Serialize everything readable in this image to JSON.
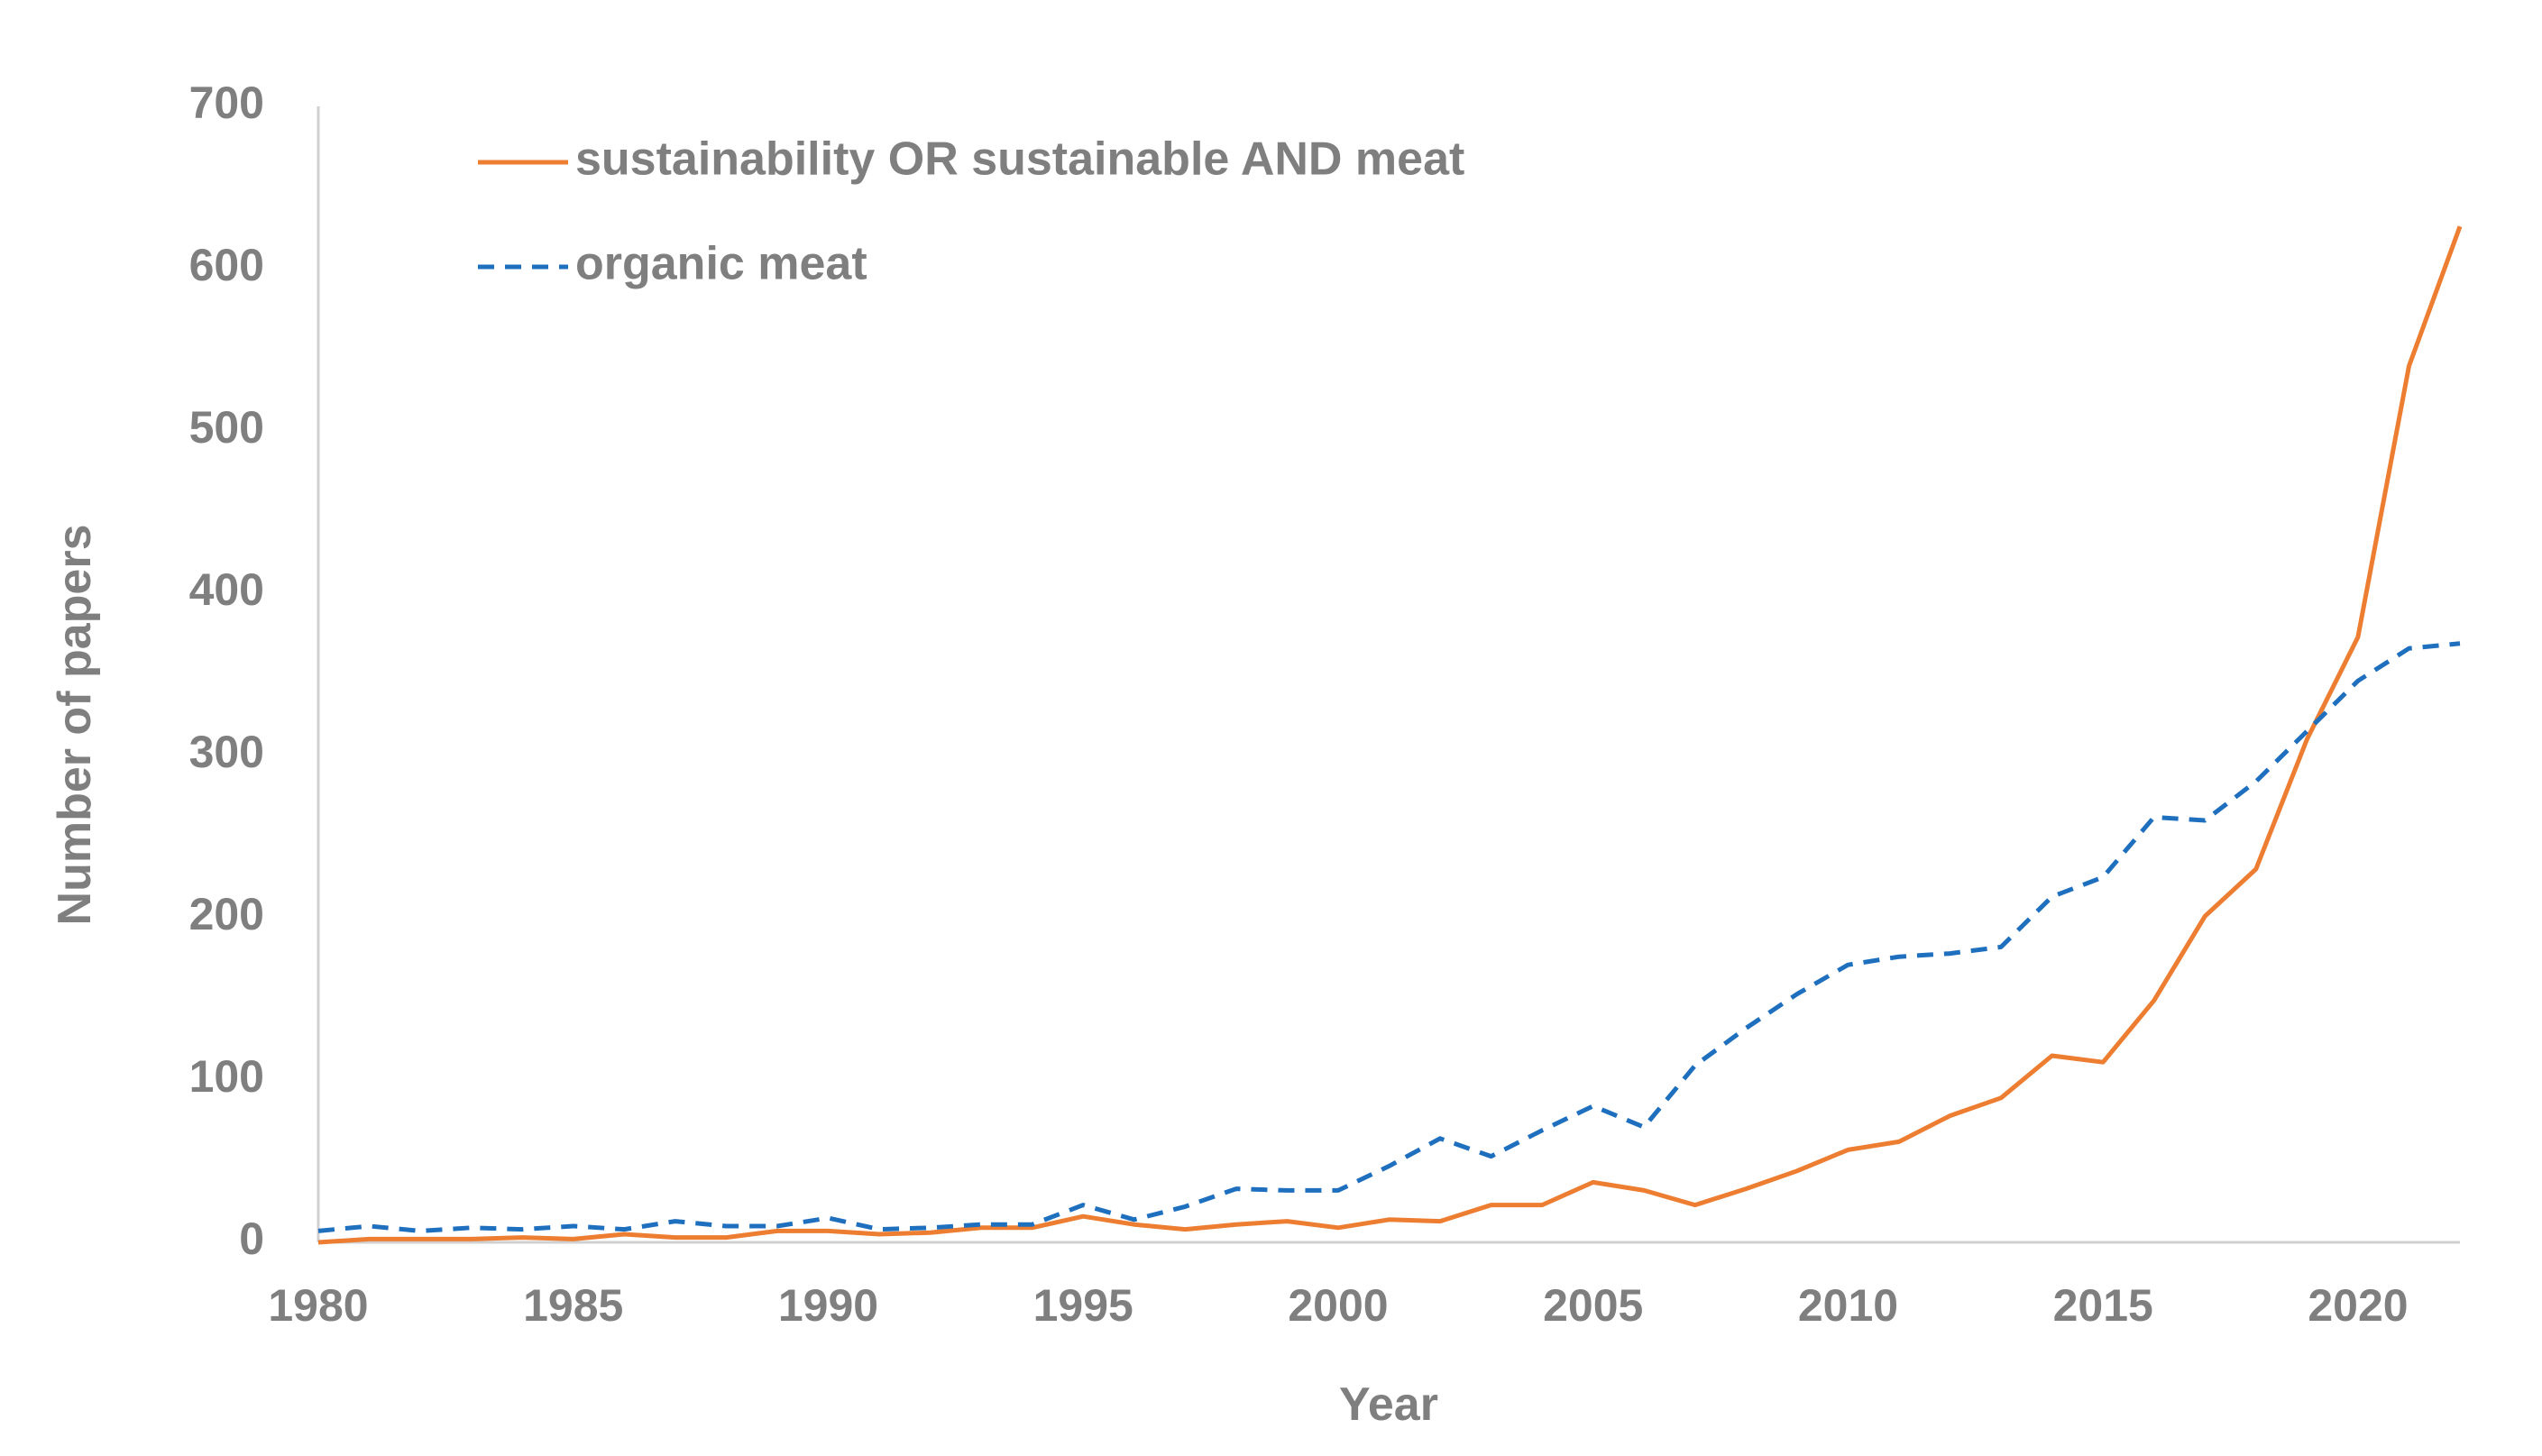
{
  "chart_data": {
    "type": "line",
    "title": "",
    "xlabel": "Year",
    "ylabel": "Number of papers",
    "xlim": [
      1980,
      2022
    ],
    "ylim": [
      0,
      700
    ],
    "x_ticks": [
      "1980",
      "1985",
      "1990",
      "1995",
      "2000",
      "2005",
      "2010",
      "2015",
      "2020"
    ],
    "y_ticks": [
      "0",
      "100",
      "200",
      "300",
      "400",
      "500",
      "600",
      "700"
    ],
    "grid": false,
    "legend_position": "top-left",
    "x": [
      1980,
      1981,
      1982,
      1983,
      1984,
      1985,
      1986,
      1987,
      1988,
      1989,
      1990,
      1991,
      1992,
      1993,
      1994,
      1995,
      1996,
      1997,
      1998,
      1999,
      2000,
      2001,
      2002,
      2003,
      2004,
      2005,
      2006,
      2007,
      2008,
      2009,
      2010,
      2011,
      2012,
      2013,
      2014,
      2015,
      2016,
      2017,
      2018,
      2019,
      2020,
      2021,
      2022
    ],
    "series": [
      {
        "name": "sustainability OR sustainable AND meat",
        "color": "#ED7D31",
        "style": "solid",
        "values": [
          0,
          2,
          2,
          2,
          3,
          2,
          5,
          3,
          3,
          7,
          7,
          5,
          6,
          9,
          9,
          16,
          11,
          8,
          11,
          13,
          9,
          14,
          13,
          23,
          23,
          37,
          32,
          23,
          33,
          44,
          57,
          62,
          78,
          89,
          115,
          111,
          149,
          201,
          230,
          310,
          373,
          540,
          626
        ]
      },
      {
        "name": "organic meat",
        "color": "#1F6FBF",
        "style": "dashed",
        "values": [
          7,
          10,
          7,
          9,
          8,
          10,
          8,
          13,
          10,
          10,
          15,
          8,
          9,
          11,
          11,
          23,
          14,
          22,
          33,
          32,
          32,
          47,
          64,
          53,
          69,
          84,
          71,
          109,
          132,
          153,
          171,
          176,
          178,
          182,
          213,
          225,
          262,
          260,
          284,
          315,
          346,
          366,
          369
        ]
      }
    ]
  }
}
